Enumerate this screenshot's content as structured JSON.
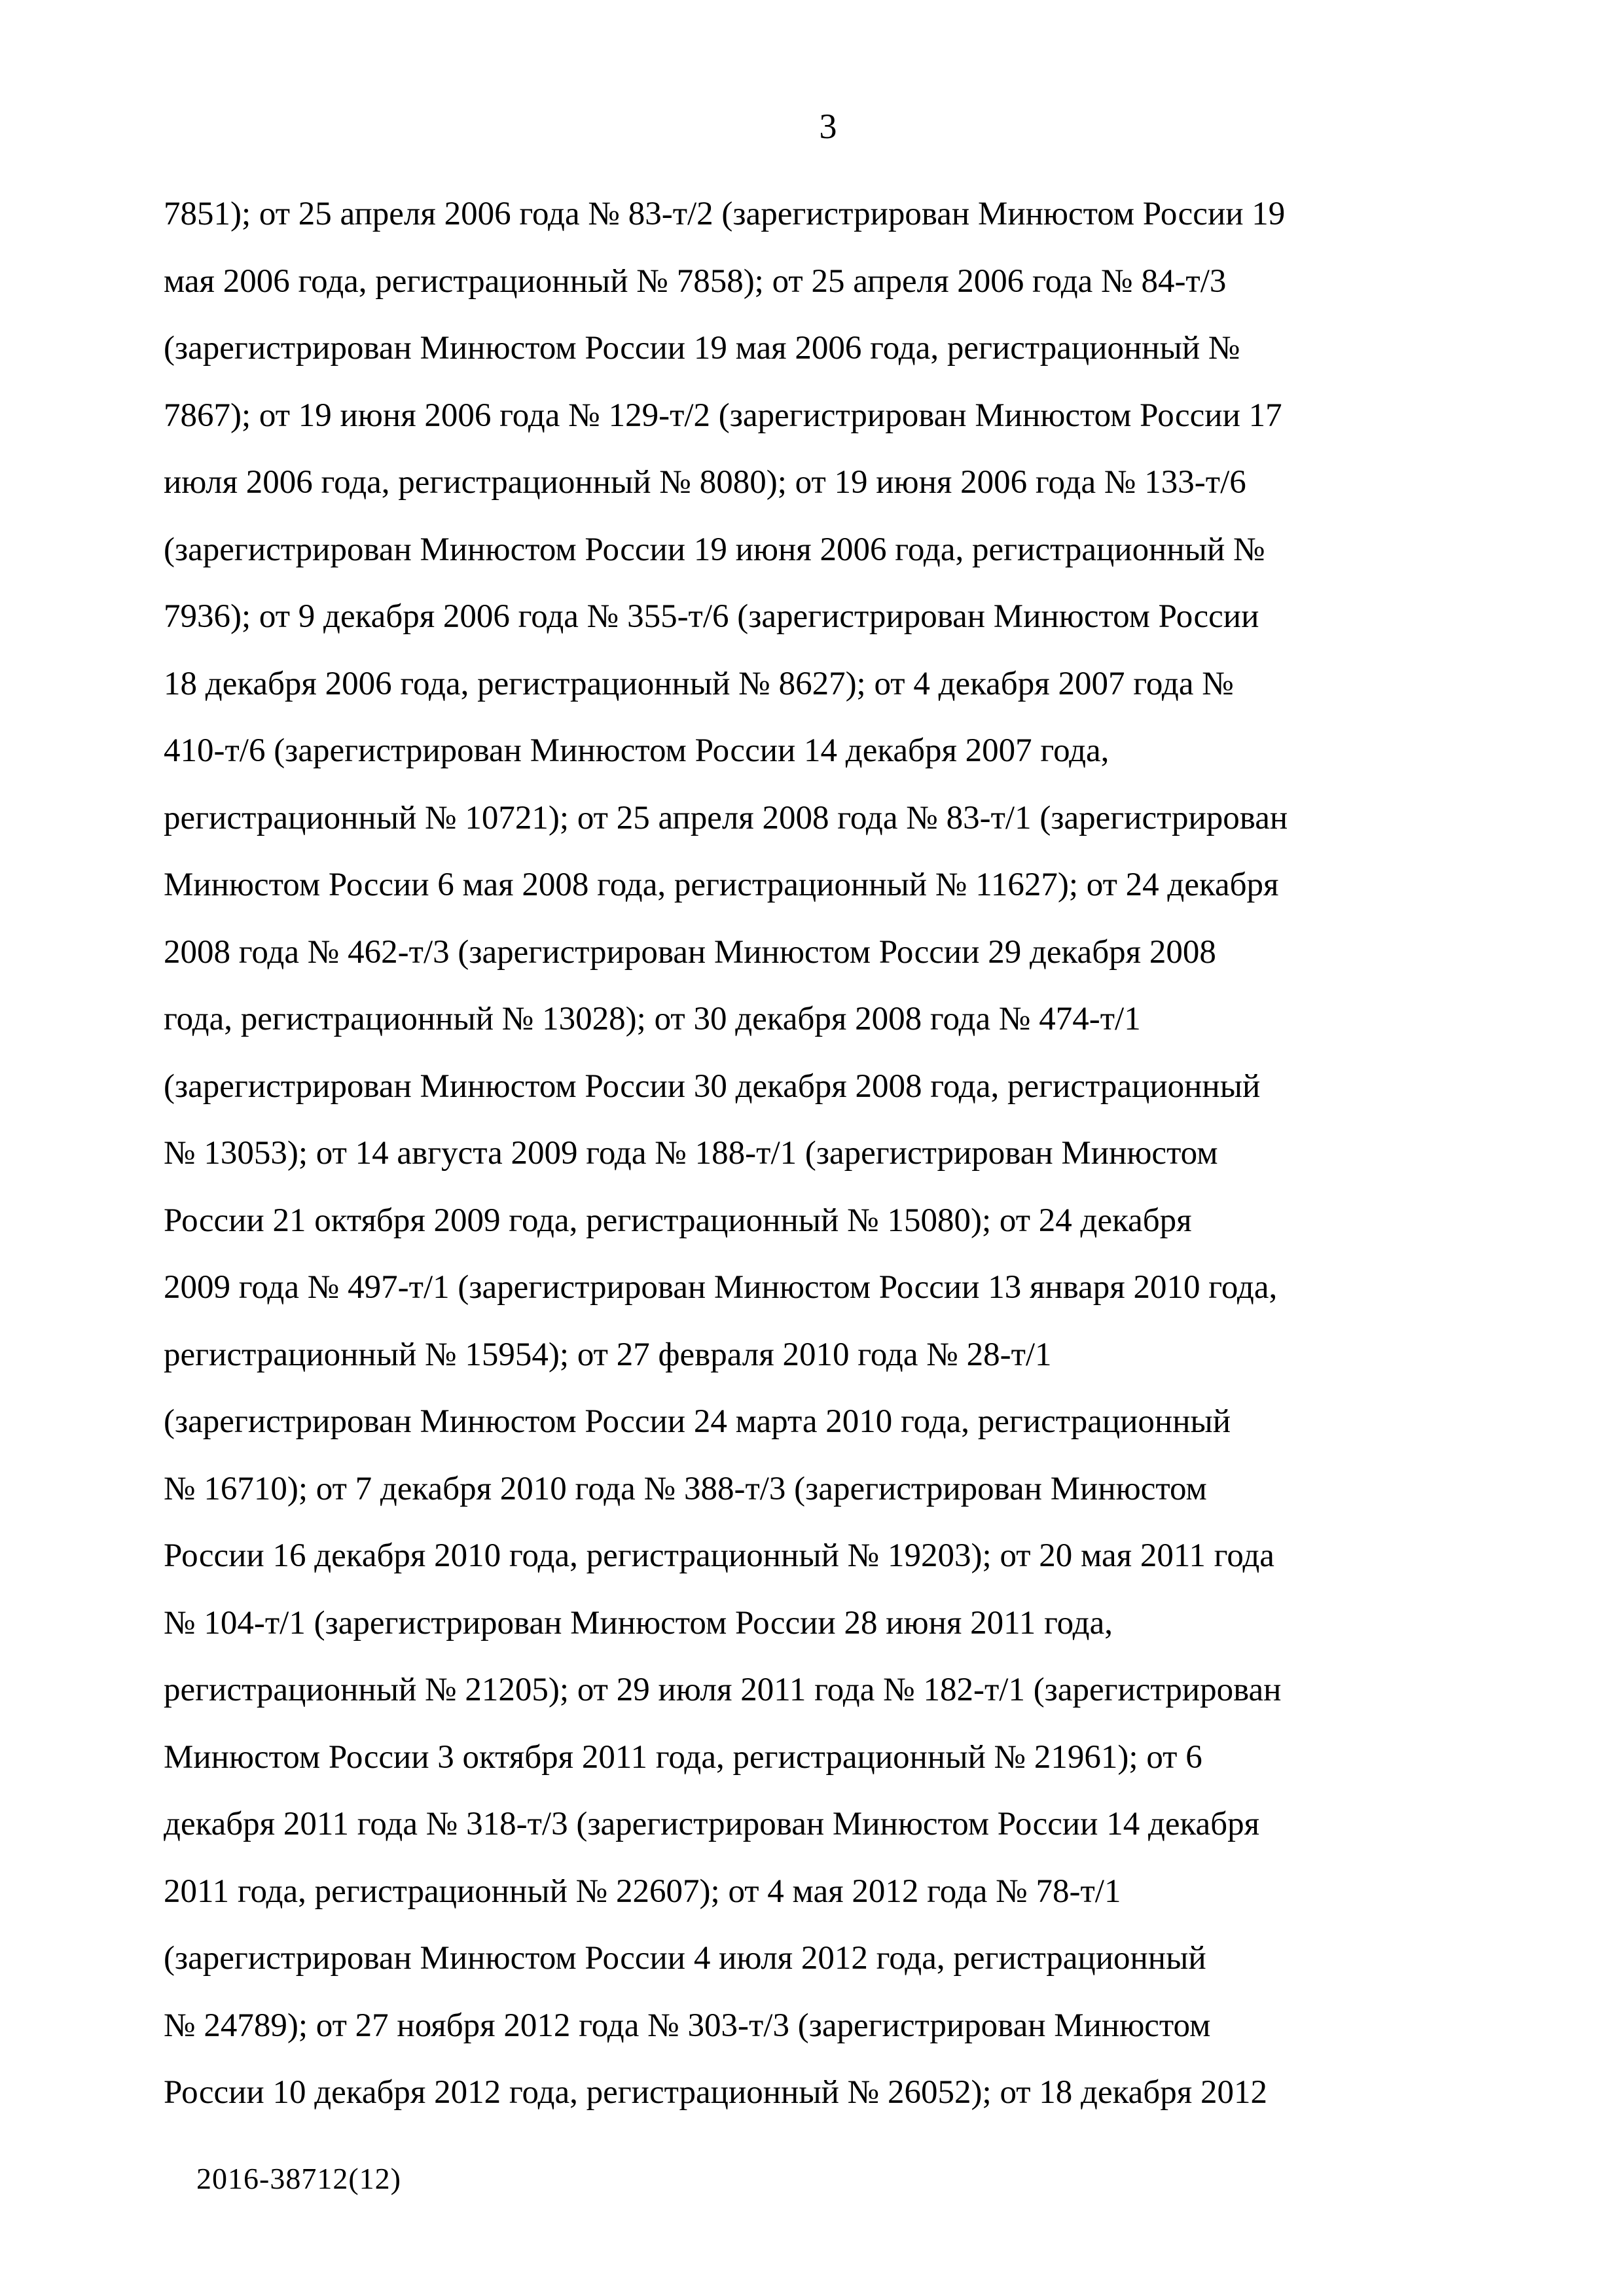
{
  "page": {
    "number": "3",
    "doc_code": "2016-38712(12)"
  },
  "document": {
    "language": "ru",
    "lines": [
      "7851); от 25 апреля 2006 года № 83-т/2 (зарегистрирован Минюстом России 19",
      "мая 2006 года, регистрационный № 7858); от 25 апреля 2006 года № 84-т/3",
      "(зарегистрирован Минюстом России 19 мая 2006 года, регистрационный №",
      "7867); от 19 июня 2006 года № 129-т/2 (зарегистрирован Минюстом России 17",
      "июля 2006 года, регистрационный № 8080); от 19 июня 2006 года № 133-т/6",
      "(зарегистрирован Минюстом России 19 июня 2006 года, регистрационный №",
      "7936); от 9 декабря 2006 года № 355-т/6 (зарегистрирован Минюстом России",
      "18 декабря 2006 года, регистрационный № 8627); от 4 декабря 2007 года №",
      "410-т/6 (зарегистрирован Минюстом России 14 декабря 2007 года,",
      "регистрационный № 10721); от 25 апреля 2008 года № 83-т/1 (зарегистрирован",
      "Минюстом России 6 мая 2008 года, регистрационный № 11627); от 24 декабря",
      "2008 года № 462-т/3 (зарегистрирован Минюстом России 29 декабря 2008",
      "года, регистрационный № 13028); от 30 декабря 2008 года № 474-т/1",
      "(зарегистрирован Минюстом России 30 декабря 2008 года, регистрационный",
      "№ 13053); от 14 августа 2009 года № 188-т/1 (зарегистрирован Минюстом",
      "России 21 октября 2009 года, регистрационный № 15080); от 24 декабря",
      "2009 года № 497-т/1 (зарегистрирован Минюстом России 13 января 2010 года,",
      "регистрационный № 15954); от 27 февраля 2010 года № 28-т/1",
      "(зарегистрирован Минюстом России 24 марта 2010 года, регистрационный",
      "№ 16710); от 7 декабря 2010 года № 388-т/3 (зарегистрирован Минюстом",
      "России 16 декабря 2010 года, регистрационный № 19203); от 20 мая 2011 года",
      "№ 104-т/1 (зарегистрирован Минюстом России 28 июня 2011 года,",
      "регистрационный № 21205); от 29 июля 2011 года № 182-т/1 (зарегистрирован",
      "Минюстом России 3 октября 2011 года, регистрационный № 21961); от 6",
      "декабря 2011 года № 318-т/3 (зарегистрирован Минюстом России 14 декабря",
      "2011 года, регистрационный № 22607); от 4 мая 2012 года № 78-т/1",
      "(зарегистрирован Минюстом России 4 июля 2012 года, регистрационный",
      "№ 24789); от 27 ноября 2012 года № 303-т/3 (зарегистрирован Минюстом",
      "России 10 декабря 2012 года, регистрационный № 26052); от 18 декабря 2012"
    ]
  }
}
